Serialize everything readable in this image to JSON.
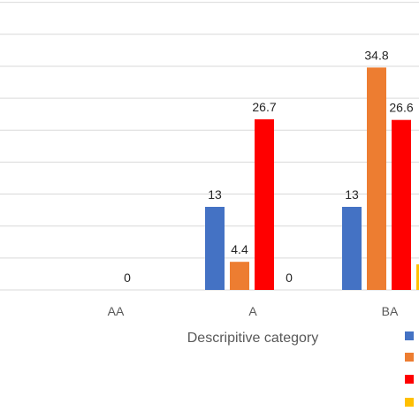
{
  "chart_data": {
    "type": "bar",
    "xlabel": "Descripitive category",
    "categories": [
      "AA",
      "A",
      "BA"
    ],
    "ylim": [
      0,
      50
    ],
    "grid": true,
    "legend": "right",
    "series": [
      {
        "color": "#4472c4",
        "values": [
          null,
          13,
          13
        ]
      },
      {
        "color": "#ed7d31",
        "values": [
          null,
          4.4,
          34.8
        ]
      },
      {
        "color": "#ff0000",
        "values": [
          0,
          26.7,
          26.6
        ]
      },
      {
        "color": "#ffc000",
        "values": [
          null,
          0,
          4
        ]
      }
    ],
    "data_labels": [
      [
        "",
        "",
        "0",
        ""
      ],
      [
        "13",
        "4.4",
        "26.7",
        "0"
      ],
      [
        "13",
        "34.8",
        "26.6",
        "4"
      ]
    ]
  }
}
